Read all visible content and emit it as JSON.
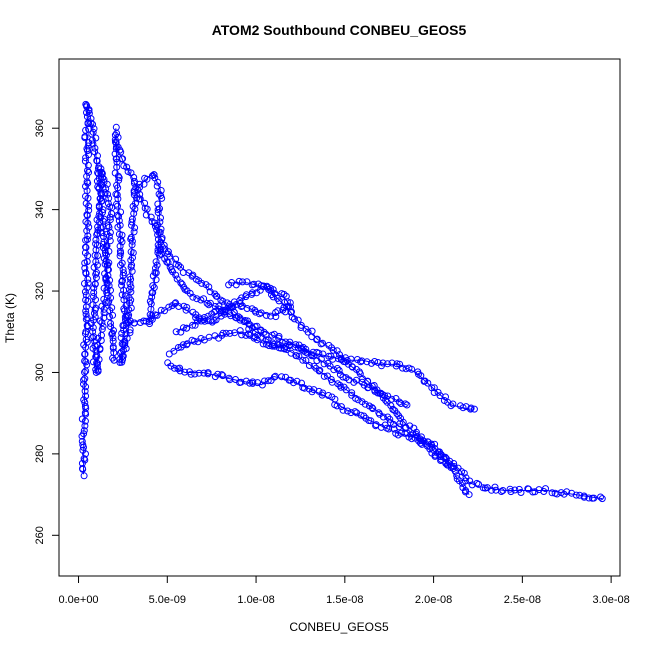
{
  "chart_data": {
    "type": "scatter",
    "title": "ATOM2 Southbound CONBEU_GEOS5",
    "xlabel": "CONBEU_GEOS5",
    "ylabel": "Theta (K)",
    "xlim": [
      -1.1e-09,
      3.05e-08
    ],
    "ylim": [
      250,
      377
    ],
    "x_ticks": [
      0,
      5e-09,
      1e-08,
      1.5e-08,
      2e-08,
      2.5e-08,
      3e-08
    ],
    "x_tick_labels": [
      "0.0e+00",
      "5.0e-09",
      "1.0e-08",
      "1.5e-08",
      "2.0e-08",
      "2.5e-08",
      "3.0e-08"
    ],
    "y_ticks": [
      260,
      280,
      300,
      320,
      340,
      360
    ],
    "y_tick_labels": [
      "260",
      "280",
      "300",
      "320",
      "340",
      "360"
    ],
    "series_color": "#0000ff",
    "marker": "open-circle",
    "connected": true,
    "series": [
      {
        "segments": [
          [
            [
              2.8e-10,
              275
            ],
            [
              3e-10,
              285
            ],
            [
              3.5e-10,
              298
            ],
            [
              4e-10,
              310
            ],
            [
              4.5e-10,
              325
            ],
            [
              5e-10,
              340
            ],
            [
              4.5e-10,
              355
            ],
            [
              5e-10,
              366
            ],
            [
              8e-10,
              360
            ],
            [
              1.2e-09,
              345
            ],
            [
              1.5e-09,
              330
            ],
            [
              1.8e-09,
              315
            ],
            [
              2e-09,
              303
            ]
          ],
          [
            [
              1e-09,
              300
            ],
            [
              1.5e-09,
              320
            ],
            [
              1.8e-09,
              340
            ],
            [
              1.3e-09,
              350
            ],
            [
              1e-09,
              330
            ],
            [
              8e-10,
              310
            ],
            [
              1e-09,
              300
            ]
          ],
          [
            [
              2.1e-09,
              360
            ],
            [
              2.2e-09,
              345
            ],
            [
              2.4e-09,
              330
            ],
            [
              2.6e-09,
              315
            ],
            [
              2.4e-09,
              302
            ],
            [
              2.8e-09,
              310
            ],
            [
              3e-09,
              330
            ],
            [
              3.2e-09,
              345
            ],
            [
              4.2e-09,
              349
            ],
            [
              4.6e-09,
              345
            ],
            [
              4.5e-09,
              330
            ],
            [
              4.2e-09,
              320
            ],
            [
              4e-09,
              312
            ]
          ],
          [
            [
              2.5e-09,
              312
            ],
            [
              4e-09,
              313
            ],
            [
              5.5e-09,
              317
            ],
            [
              6.5e-09,
              314
            ],
            [
              7.5e-09,
              312
            ],
            [
              8.5e-09,
              316
            ],
            [
              9.5e-09,
              319
            ],
            [
              1.05e-08,
              321
            ],
            [
              1.15e-08,
              317
            ],
            [
              1.25e-08,
              312
            ],
            [
              1.35e-08,
              308
            ],
            [
              1.45e-08,
              305
            ],
            [
              1.55e-08,
              301
            ],
            [
              1.65e-08,
              297
            ],
            [
              1.75e-08,
              292
            ],
            [
              1.85e-08,
              287
            ],
            [
              1.95e-08,
              283
            ],
            [
              2.05e-08,
              280
            ],
            [
              2.15e-08,
              276
            ],
            [
              2.2e-08,
              273
            ],
            [
              2.25e-08,
              272
            ],
            [
              2.4e-08,
              271
            ],
            [
              2.64e-08,
              271
            ],
            [
              2.8e-08,
              270
            ],
            [
              2.95e-08,
              269
            ]
          ],
          [
            [
              4.5e-09,
              331
            ],
            [
              5.2e-09,
              325
            ],
            [
              6e-09,
              320
            ],
            [
              6.8e-09,
              318
            ],
            [
              7.8e-09,
              316
            ],
            [
              9e-09,
              313
            ],
            [
              1e-08,
              310
            ],
            [
              1.1e-08,
              307
            ],
            [
              1.2e-08,
              305
            ],
            [
              1.3e-08,
              302
            ],
            [
              1.4e-08,
              299
            ],
            [
              1.5e-08,
              296
            ],
            [
              1.6e-08,
              293
            ],
            [
              1.7e-08,
              290
            ],
            [
              1.8e-08,
              287
            ],
            [
              1.9e-08,
              284
            ],
            [
              2e-08,
              280
            ],
            [
              2.1e-08,
              277
            ]
          ],
          [
            [
              5e-09,
              302
            ],
            [
              6e-09,
              300
            ],
            [
              7e-09,
              300
            ],
            [
              8e-09,
              299
            ],
            [
              9e-09,
              298
            ],
            [
              1.03e-08,
              297
            ],
            [
              1.1e-08,
              299
            ],
            [
              1.2e-08,
              298
            ],
            [
              1.3e-08,
              296
            ],
            [
              1.4e-08,
              294
            ],
            [
              1.5e-08,
              291
            ],
            [
              1.6e-08,
              289
            ],
            [
              1.7e-08,
              287
            ],
            [
              1.8e-08,
              285
            ],
            [
              1.9e-08,
              284
            ],
            [
              2e-08,
              282
            ],
            [
              2.1e-08,
              276
            ],
            [
              2.2e-08,
              270
            ]
          ],
          [
            [
              5.2e-09,
              305
            ],
            [
              6e-09,
              307
            ],
            [
              7e-09,
              308
            ],
            [
              8e-09,
              309
            ],
            [
              9e-09,
              310
            ],
            [
              1e-08,
              308
            ],
            [
              1.1e-08,
              306
            ],
            [
              1.2e-08,
              307
            ],
            [
              1.3e-08,
              305
            ],
            [
              1.4e-08,
              304
            ],
            [
              1.5e-08,
              303
            ],
            [
              1.6e-08,
              303
            ],
            [
              1.7e-08,
              302
            ],
            [
              1.8e-08,
              302
            ],
            [
              1.9e-08,
              300
            ],
            [
              2e-08,
              296
            ],
            [
              2.1e-08,
              292
            ],
            [
              2.2e-08,
              291
            ],
            [
              2.23e-08,
              291
            ]
          ],
          [
            [
              8.5e-09,
              322
            ],
            [
              9.5e-09,
              322
            ],
            [
              1.05e-08,
              321
            ],
            [
              1.15e-08,
              319
            ],
            [
              1.2e-08,
              316
            ],
            [
              1.1e-08,
              314
            ],
            [
              1e-08,
              315
            ],
            [
              9e-09,
              317
            ],
            [
              8e-09,
              315
            ],
            [
              7e-09,
              313
            ],
            [
              6e-09,
              311
            ],
            [
              5.5e-09,
              310
            ]
          ],
          [
            [
              2e-09,
              357
            ],
            [
              2.5e-09,
              352
            ],
            [
              3e-09,
              348
            ],
            [
              3.5e-09,
              343
            ],
            [
              4e-09,
              338
            ],
            [
              4.5e-09,
              334
            ],
            [
              5e-09,
              330
            ],
            [
              5.5e-09,
              327
            ],
            [
              6e-09,
              325
            ],
            [
              7e-09,
              322
            ],
            [
              8e-09,
              318
            ],
            [
              9e-09,
              314
            ],
            [
              1e-08,
              311
            ],
            [
              1.1e-08,
              309
            ],
            [
              1.25e-08,
              306
            ],
            [
              1.4e-08,
              302
            ],
            [
              1.55e-08,
              298
            ],
            [
              1.7e-08,
              295
            ],
            [
              1.8e-08,
              293
            ],
            [
              1.85e-08,
              292
            ]
          ]
        ]
      }
    ]
  }
}
